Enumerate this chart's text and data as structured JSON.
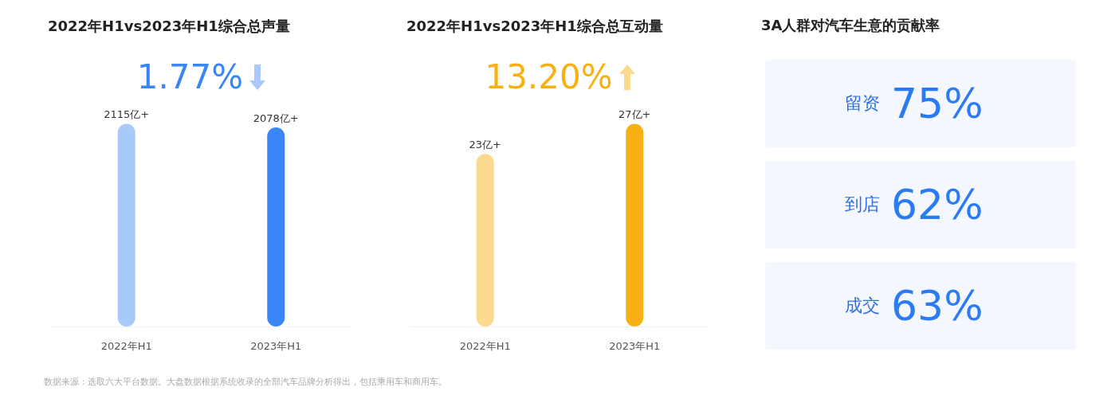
{
  "chart_data": [
    {
      "type": "bar",
      "title": "2022年H1vs2023年H1综合总声量",
      "categories": [
        "2022年H1",
        "2023年H1"
      ],
      "values": [
        2115,
        2078
      ],
      "value_labels": [
        "2115亿+",
        "2078亿+"
      ],
      "colors": [
        "#a9c9fb",
        "#3a86f7"
      ],
      "annotations": [
        "1.77%",
        "数据来源：选取六大平台数据。大盘数据根据系统收录的全部汽车品牌分析得出，包括乘用车和商用车。"
      ]
    },
    {
      "type": "bar",
      "title": "2022年H1vs2023年H1综合总互动量",
      "categories": [
        "2022年H1",
        "2023年H1"
      ],
      "values": [
        23,
        27
      ],
      "value_labels": [
        "23亿+",
        "27亿+"
      ],
      "colors": [
        "#fbd98f",
        "#f8b115"
      ],
      "annotations": [
        "13.20%"
      ]
    },
    {
      "type": "other",
      "title": "3A人群对汽车生意的贡献率",
      "categories": [
        "留资",
        "到店",
        "成交"
      ],
      "value_labels": [
        "75%",
        "62%",
        "63%"
      ]
    }
  ]
}
